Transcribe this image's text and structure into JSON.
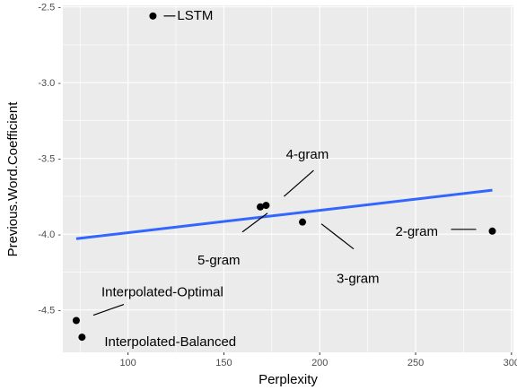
{
  "chart_data": {
    "type": "scatter",
    "title": "",
    "xlabel": "Perplexity",
    "ylabel": "Previous.Word.Coefficient",
    "xlim": [
      66,
      301
    ],
    "ylim": [
      -4.78,
      -2.49
    ],
    "x_ticks": [
      100,
      150,
      200,
      250,
      300
    ],
    "x_tick_labels": [
      "100",
      "150",
      "200",
      "250",
      "300"
    ],
    "y_ticks": [
      -2.5,
      -3.0,
      -3.5,
      -4.0,
      -4.5
    ],
    "y_tick_labels": [
      "-2.5 -",
      "-3.0 -",
      "-3.5 -",
      "-4.0 -",
      "-4.5 -"
    ],
    "grid": true,
    "points": [
      {
        "label": "LSTM",
        "x": 113,
        "y": -2.56
      },
      {
        "label": "4-gram",
        "x": 172,
        "y": -3.81
      },
      {
        "label": "5-gram",
        "x": 169,
        "y": -3.82
      },
      {
        "label": "3-gram",
        "x": 191,
        "y": -3.92
      },
      {
        "label": "2-gram",
        "x": 290,
        "y": -3.98
      },
      {
        "label": "Interpolated-Optimal",
        "x": 73,
        "y": -4.57
      },
      {
        "label": "Interpolated-Balanced",
        "x": 76,
        "y": -4.68
      }
    ],
    "regression_line": {
      "x": [
        73,
        290
      ],
      "y": [
        -4.03,
        -3.71
      ],
      "color": "#3366FF"
    },
    "colors": {
      "panel": "#EBEBEB",
      "grid": "#FFFFFF",
      "points": "#000000"
    }
  }
}
